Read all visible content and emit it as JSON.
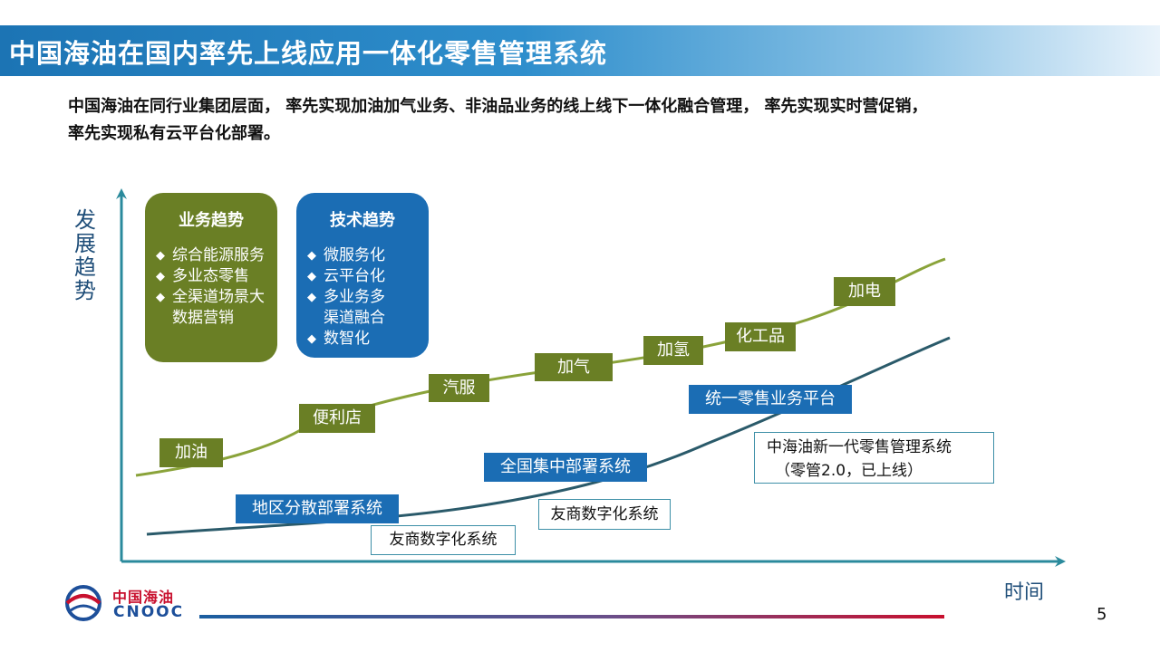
{
  "title": "中国海油在国内率先上线应用一体化零售管理系统",
  "intro": {
    "line1": "中国海油在同行业集团层面， 率先实现加油加气业务、非油品业务的线上线下一体化融合管理， 率先实现实时营促销，",
    "line2": "率先实现私有云平台化部署。"
  },
  "axes": {
    "y_label_chars": [
      "发",
      "展",
      "趋",
      "势"
    ],
    "x_label": "时间"
  },
  "business_trends": {
    "title": "业务趋势",
    "items": [
      "综合能源服务",
      "多业态零售",
      "全渠道场景大\n数据营销"
    ]
  },
  "tech_trends": {
    "title": "技术趋势",
    "items": [
      "微服务化",
      "云平台化",
      "多业务多\n 渠道融合",
      "数智化"
    ]
  },
  "green_milestones": [
    "加油",
    "便利店",
    "汽服",
    "加气",
    "加氢",
    "化工品",
    "加电"
  ],
  "blue_milestones": [
    "地区分散部署系统",
    "全国集中部署系统",
    "统一零售业务平台"
  ],
  "competitor_labels": [
    "友商数字化系统",
    "友商数字化系统"
  ],
  "new_system": {
    "line1": "中海油新一代零售管理系统",
    "line2": "（零管2.0，已上线）"
  },
  "logo": {
    "cn": "中国海油",
    "en": "CNOOC"
  },
  "page_number": "5",
  "colors": {
    "green": "#6a7f25",
    "green_curve": "#8aa33a",
    "blue": "#1b6db4",
    "teal_axis": "#2a8a9c",
    "dark_curve": "#2a5a6a",
    "brand_red": "#c8102e"
  }
}
